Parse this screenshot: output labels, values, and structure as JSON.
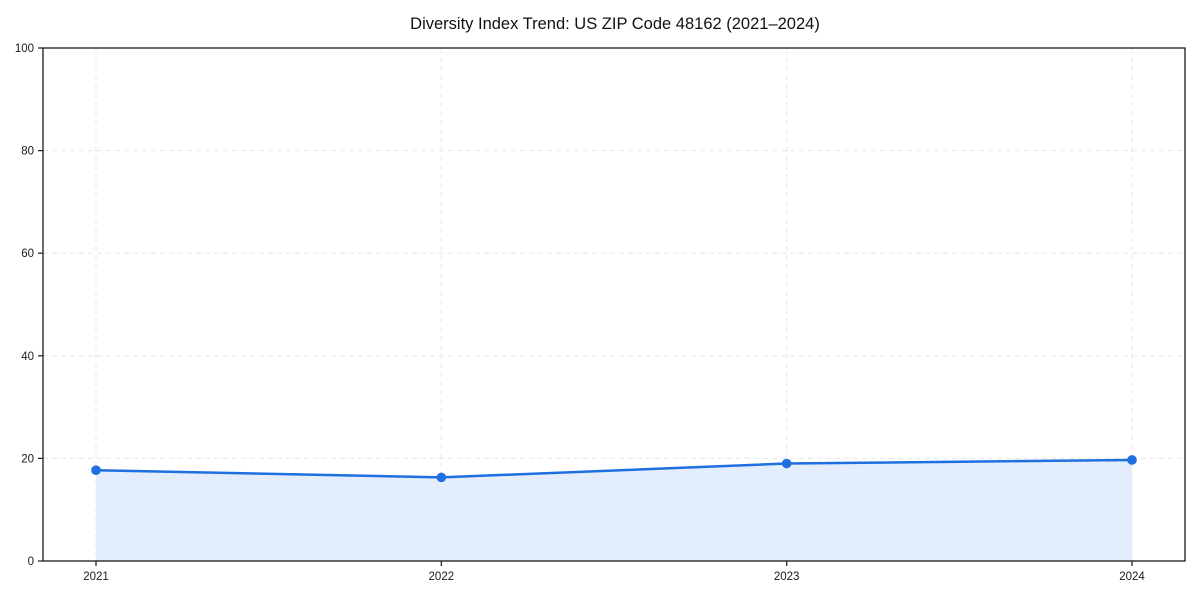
{
  "chart_data": {
    "type": "area",
    "title": "Diversity Index Trend: US ZIP Code 48162 (2021–2024)",
    "categories": [
      "2021",
      "2022",
      "2023",
      "2024"
    ],
    "series": [
      {
        "name": "Diversity Index",
        "values": [
          17.7,
          16.3,
          19.0,
          19.7
        ]
      }
    ],
    "xlabel": "",
    "ylabel": "",
    "ylim": [
      0,
      100
    ],
    "yticks": [
      0,
      20,
      40,
      60,
      80,
      100
    ],
    "grid": true,
    "grid_style": "dashed",
    "legend_position": "none",
    "colors": {
      "line": "#1f6fe0",
      "marker": "#1f6fe0",
      "fill": "#e3edfb",
      "grid": "#e7e7e7",
      "spine": "#1a1a1a",
      "tick_text": "#1a1a1a",
      "background": "#ffffff"
    }
  }
}
